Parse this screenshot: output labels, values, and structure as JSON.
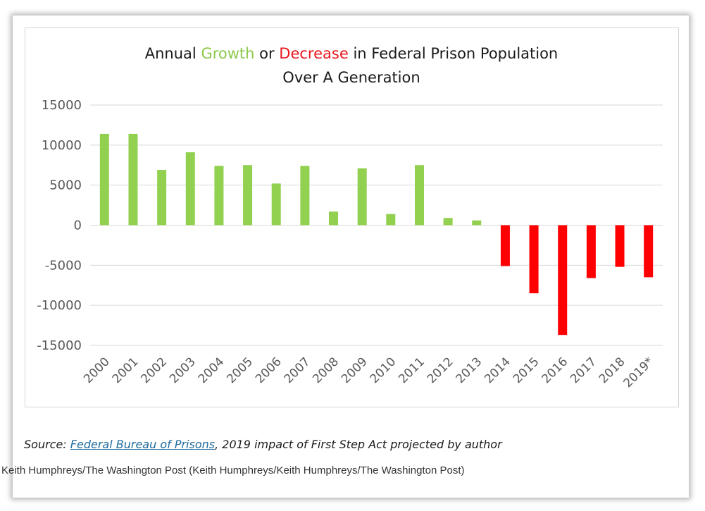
{
  "chart_data": {
    "type": "bar",
    "title": {
      "line1": [
        {
          "text": "Annual ",
          "color": "#1a1a1a"
        },
        {
          "text": "Growth",
          "color": "#8cc84b"
        },
        {
          "text": " or ",
          "color": "#1a1a1a"
        },
        {
          "text": "Decrease",
          "color": "#e8181e"
        },
        {
          "text": " in Federal Prison Population",
          "color": "#1a1a1a"
        }
      ],
      "line2": "Over A Generation"
    },
    "categories": [
      "2000",
      "2001",
      "2002",
      "2003",
      "2004",
      "2005",
      "2006",
      "2007",
      "2008",
      "2009",
      "2010",
      "2011",
      "2012",
      "2013",
      "2014",
      "2015",
      "2016",
      "2017",
      "2018",
      "2019*"
    ],
    "values": [
      11400,
      11400,
      6900,
      9100,
      7400,
      7500,
      5200,
      7400,
      1700,
      7100,
      1400,
      7500,
      900,
      600,
      -5100,
      -8500,
      -13700,
      -6600,
      -5200,
      -6500
    ],
    "ylim": [
      -15000,
      15000
    ],
    "yticks": [
      15000,
      10000,
      5000,
      0,
      -5000,
      -10000,
      -15000
    ],
    "ytick_labels": [
      "15000",
      "10000",
      "5000",
      "0",
      "-5000",
      "-10000",
      "-15000"
    ],
    "grid": true,
    "colors": {
      "positive": "#92d050",
      "negative": "#ff0000",
      "grid": "#d9d9d9"
    }
  },
  "source": {
    "prefix": "Source: ",
    "link": "Federal Bureau of Prisons",
    "suffix": ", 2019 impact of First Step Act projected by author"
  },
  "credit": "Keith Humphreys/The Washington Post (Keith Humphreys/Keith Humphreys/The Washington Post)"
}
